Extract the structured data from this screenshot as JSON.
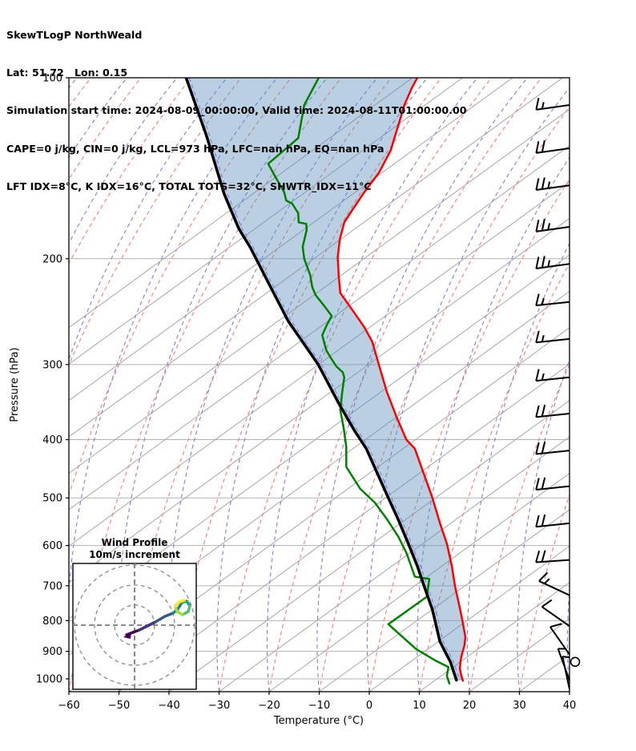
{
  "header": {
    "lines": [
      "SkewTLogP NorthWeald",
      "Lat: 51.72   Lon: 0.15",
      "Simulation start time: 2024-08-09_00:00:00, Valid time: 2024-08-11T01:00:00.00",
      "CAPE=0 j/kg, CIN=0 j/kg, LCL=973 hPa, LFC=nan hPa, EQ=nan hPa",
      "LFT IDX=8°C, K IDX=16°C, TOTAL TOTS=32°C, SHWTR_IDX=11°C"
    ]
  },
  "axes": {
    "x": {
      "label": "Temperature (°C)",
      "ticks": [
        -60,
        -50,
        -40,
        -30,
        -20,
        -10,
        0,
        10,
        20,
        30,
        40
      ]
    },
    "y": {
      "label": "Pressure (hPa)",
      "ticks": [
        100,
        200,
        300,
        400,
        500,
        600,
        700,
        800,
        900,
        1000
      ]
    }
  },
  "chart_data": {
    "type": "line",
    "subtype": "skew-t-log-p",
    "xlabel": "Temperature (°C)",
    "ylabel": "Pressure (hPa)",
    "xlim": [
      -60,
      40
    ],
    "ylim_hpa": [
      1050,
      100
    ],
    "x_coord_space": "skewed temperature coordinate read on the bottom axis",
    "grid": {
      "isotherm_color": "#a6a6a6",
      "pressure_line_color": "#b3b3b3",
      "dry_adiabat_color": "#f47c7c",
      "moist_adiabat_color": "#7e7ee0"
    },
    "series": [
      {
        "name": "temperature",
        "color": "#ff0000",
        "width": 2.5,
        "points": [
          [
            100,
            9.6
          ],
          [
            104,
            8.5
          ],
          [
            111,
            7.0
          ],
          [
            120,
            5.8
          ],
          [
            126,
            5.0
          ],
          [
            132,
            4.3
          ],
          [
            144,
            1.9
          ],
          [
            155,
            -1.0
          ],
          [
            166,
            -3.4
          ],
          [
            174,
            -5.0
          ],
          [
            186,
            -5.9
          ],
          [
            199,
            -6.3
          ],
          [
            214,
            -6.1
          ],
          [
            228,
            -5.8
          ],
          [
            246,
            -3.0
          ],
          [
            260,
            -1.0
          ],
          [
            275,
            0.6
          ],
          [
            300,
            1.9
          ],
          [
            333,
            3.5
          ],
          [
            366,
            5.4
          ],
          [
            400,
            7.4
          ],
          [
            414,
            9.1
          ],
          [
            500,
            12.6
          ],
          [
            550,
            14.1
          ],
          [
            596,
            15.5
          ],
          [
            649,
            16.5
          ],
          [
            700,
            17.1
          ],
          [
            750,
            17.9
          ],
          [
            800,
            18.6
          ],
          [
            852,
            19.2
          ],
          [
            880,
            19.0
          ],
          [
            917,
            18.4
          ],
          [
            937,
            18.2
          ],
          [
            962,
            18.1
          ],
          [
            989,
            18.4
          ],
          [
            1007,
            18.7
          ]
        ]
      },
      {
        "name": "dewpoint",
        "color": "#008000",
        "width": 2.5,
        "points": [
          [
            100,
            -10.1
          ],
          [
            111,
            -13.0
          ],
          [
            126,
            -14.2
          ],
          [
            139,
            -20.2
          ],
          [
            147,
            -18.6
          ],
          [
            155,
            -17.0
          ],
          [
            160,
            -16.6
          ],
          [
            162,
            -15.4
          ],
          [
            168,
            -14.2
          ],
          [
            174,
            -14.1
          ],
          [
            175,
            -12.6
          ],
          [
            179,
            -12.5
          ],
          [
            191,
            -13.3
          ],
          [
            200,
            -13.0
          ],
          [
            213,
            -11.8
          ],
          [
            223,
            -11.4
          ],
          [
            230,
            -10.7
          ],
          [
            239,
            -9.1
          ],
          [
            249,
            -7.5
          ],
          [
            258,
            -8.5
          ],
          [
            268,
            -9.4
          ],
          [
            284,
            -8.6
          ],
          [
            294,
            -7.5
          ],
          [
            302,
            -6.6
          ],
          [
            309,
            -5.3
          ],
          [
            315,
            -5.0
          ],
          [
            333,
            -5.4
          ],
          [
            357,
            -5.8
          ],
          [
            383,
            -5.1
          ],
          [
            411,
            -4.6
          ],
          [
            444,
            -4.6
          ],
          [
            483,
            -1.8
          ],
          [
            509,
            1.1
          ],
          [
            542,
            3.5
          ],
          [
            580,
            5.8
          ],
          [
            617,
            7.4
          ],
          [
            647,
            8.3
          ],
          [
            676,
            9.1
          ],
          [
            682,
            12.0
          ],
          [
            730,
            11.5
          ],
          [
            768,
            7.8
          ],
          [
            811,
            3.8
          ],
          [
            893,
            9.4
          ],
          [
            934,
            13.4
          ],
          [
            956,
            15.8
          ],
          [
            989,
            15.5
          ],
          [
            1018,
            16.0
          ]
        ]
      },
      {
        "name": "parcel_boundary",
        "color": "#000000",
        "width": 3.5,
        "points": [
          [
            100,
            -36.6
          ],
          [
            125,
            -32.5
          ],
          [
            156,
            -29.0
          ],
          [
            178,
            -26.1
          ],
          [
            192,
            -23.7
          ],
          [
            219,
            -20.2
          ],
          [
            254,
            -16.2
          ],
          [
            300,
            -10.2
          ],
          [
            347,
            -6.2
          ],
          [
            386,
            -3.0
          ],
          [
            414,
            -0.6
          ],
          [
            500,
            3.8
          ],
          [
            546,
            5.9
          ],
          [
            596,
            7.8
          ],
          [
            649,
            9.6
          ],
          [
            703,
            11.0
          ],
          [
            767,
            12.6
          ],
          [
            866,
            14.1
          ],
          [
            903,
            15.2
          ],
          [
            937,
            16.2
          ],
          [
            1005,
            17.4
          ]
        ]
      }
    ],
    "shading": {
      "between": [
        "temperature",
        "parcel_boundary"
      ],
      "color": "#5b8fba",
      "opacity": 0.42
    },
    "wind_barbs": {
      "units": "m/s",
      "full_barb": 10,
      "half_barb": 5,
      "barbs": [
        {
          "p": 111,
          "dir": -8,
          "speed": 15
        },
        {
          "p": 131,
          "dir": -8,
          "speed": 20
        },
        {
          "p": 151,
          "dir": -8,
          "speed": 25
        },
        {
          "p": 177,
          "dir": -8,
          "speed": 25
        },
        {
          "p": 204,
          "dir": -8,
          "speed": 25
        },
        {
          "p": 236,
          "dir": -6,
          "speed": 15
        },
        {
          "p": 272,
          "dir": -6,
          "speed": 15
        },
        {
          "p": 315,
          "dir": -6,
          "speed": 15
        },
        {
          "p": 362,
          "dir": -6,
          "speed": 20
        },
        {
          "p": 417,
          "dir": -6,
          "speed": 20
        },
        {
          "p": 478,
          "dir": -6,
          "speed": 20
        },
        {
          "p": 551,
          "dir": -6,
          "speed": 20
        },
        {
          "p": 634,
          "dir": -4,
          "speed": 20
        },
        {
          "p": 726,
          "dir": 25,
          "speed": 15
        },
        {
          "p": 817,
          "dir": 35,
          "speed": 10
        },
        {
          "p": 911,
          "dir": 55,
          "speed": 10
        },
        {
          "p": 1006,
          "dir": 70,
          "speed": 5
        },
        {
          "p": 1041,
          "dir": 78,
          "speed": 5
        }
      ],
      "calm": {
        "p": 937
      }
    },
    "hodograph": {
      "title": "Wind Profile",
      "subtitle": "10m/s increment",
      "rings_ms": [
        10,
        20,
        30
      ],
      "trace_uv_ms": [
        [
          -4,
          -4.8
        ],
        [
          -0.8,
          -3.6
        ],
        [
          2.4,
          -2.4
        ],
        [
          6.4,
          -0.4
        ],
        [
          10.4,
          1.6
        ],
        [
          15.2,
          4.4
        ],
        [
          19.2,
          6
        ],
        [
          21.6,
          8
        ],
        [
          23.6,
          11.2
        ],
        [
          26,
          12
        ],
        [
          27.6,
          9.6
        ],
        [
          26.8,
          6.8
        ],
        [
          24,
          5.2
        ],
        [
          21.2,
          6.8
        ],
        [
          20.4,
          9.6
        ],
        [
          22.4,
          11.6
        ],
        [
          24.8,
          12.4
        ]
      ],
      "colormap": [
        "#440154",
        "#46327e",
        "#365c8d",
        "#277f8e",
        "#1fa187",
        "#4ac16d",
        "#a0da39",
        "#fde725"
      ]
    }
  }
}
